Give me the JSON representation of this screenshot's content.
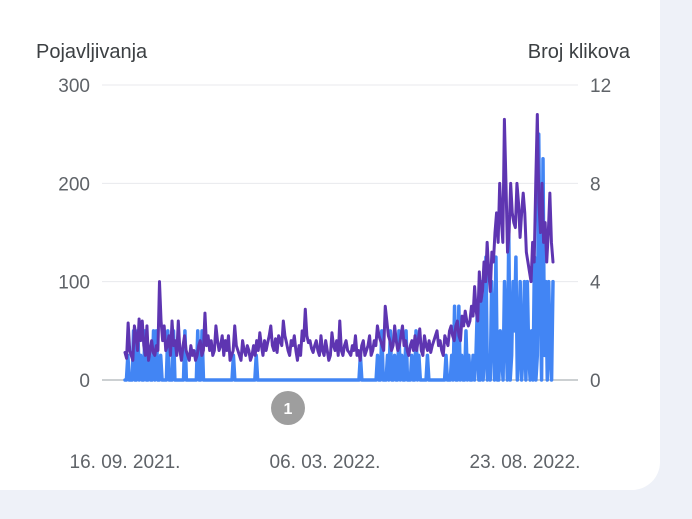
{
  "chart_data": {
    "type": "line",
    "left_axis_title": "Pojavljivanja",
    "right_axis_title": "Broj klikova",
    "left_ticks": [
      "0",
      "100",
      "200",
      "300"
    ],
    "left_ylim": [
      0,
      300
    ],
    "right_ticks": [
      "0",
      "4",
      "8",
      "12"
    ],
    "right_ylim": [
      0,
      12
    ],
    "x_ticks": [
      "16. 09. 2021.",
      "06. 03. 2022.",
      "23. 08. 2022."
    ],
    "annotation": "1",
    "colors": {
      "impressions": "#5e35b1",
      "clicks": "#4285f4"
    },
    "series": [
      {
        "axis": "left",
        "values": [
          28,
          22,
          58,
          30,
          25,
          20,
          55,
          45,
          30,
          62,
          40,
          60,
          35,
          25,
          55,
          20,
          30,
          40,
          28,
          25,
          35,
          30,
          100,
          60,
          40,
          55,
          30,
          35,
          45,
          25,
          60,
          35,
          40,
          25,
          60,
          30,
          20,
          35,
          45,
          30,
          25,
          20,
          35,
          25,
          30,
          20,
          25,
          35,
          40,
          25,
          30,
          68,
          35,
          45,
          30,
          40,
          25,
          30,
          55,
          40,
          30,
          35,
          45,
          25,
          40,
          30,
          45,
          20,
          25,
          30,
          55,
          35,
          30,
          25,
          20,
          40,
          30,
          25,
          35,
          30,
          20,
          25,
          35,
          25,
          40,
          30,
          48,
          35,
          25,
          40,
          30,
          38,
          45,
          55,
          35,
          30,
          42,
          28,
          45,
          40,
          35,
          60,
          45,
          38,
          30,
          25,
          40,
          35,
          45,
          30,
          20,
          35,
          25,
          50,
          40,
          72,
          45,
          38,
          40,
          32,
          28,
          35,
          40,
          30,
          25,
          45,
          30,
          25,
          40,
          30,
          20,
          25,
          48,
          35,
          30,
          40,
          25,
          60,
          30,
          25,
          35,
          40,
          30,
          28,
          25,
          35,
          30,
          45,
          25,
          30,
          20,
          35,
          40,
          25,
          30,
          35,
          45,
          25,
          30,
          40,
          35,
          55,
          45,
          40,
          35,
          30,
          75,
          60,
          45,
          40,
          30,
          35,
          55,
          40,
          30,
          35,
          45,
          55,
          35,
          40,
          30,
          25,
          35,
          40,
          30,
          45,
          30,
          40,
          52,
          30,
          25,
          45,
          35,
          30,
          40,
          28,
          35,
          40,
          45,
          50,
          35,
          40,
          30,
          25,
          45,
          40,
          35,
          50,
          55,
          45,
          40,
          55,
          60,
          45,
          40,
          65,
          55,
          70,
          60,
          55,
          60,
          75,
          65,
          95,
          70,
          60,
          110,
          80,
          90,
          120,
          100,
          140,
          110,
          90,
          130,
          120,
          150,
          170,
          140,
          200,
          165,
          140,
          265,
          200,
          130,
          150,
          200,
          170,
          160,
          155,
          200,
          180,
          145,
          170,
          190,
          170,
          130,
          120,
          110,
          100,
          140,
          120,
          200,
          270,
          180,
          150,
          200,
          140,
          160,
          120,
          150,
          190,
          140,
          120
        ]
      },
      {
        "axis": "right",
        "values": [
          0,
          0,
          1,
          0,
          0,
          0,
          2,
          0,
          0,
          2,
          0,
          1,
          0,
          0,
          2,
          0,
          0,
          1,
          0,
          0,
          2,
          0,
          2,
          0,
          0,
          1,
          0,
          0,
          0,
          0,
          2,
          0,
          0,
          0,
          2,
          0,
          0,
          0,
          0,
          0,
          0,
          0,
          2,
          0,
          0,
          0,
          0,
          0,
          0,
          0,
          0,
          2,
          0,
          0,
          2,
          0,
          0,
          0,
          0,
          0,
          0,
          0,
          0,
          0,
          0,
          0,
          0,
          0,
          0,
          0,
          0,
          0,
          0,
          0,
          0,
          0,
          1,
          0,
          0,
          0,
          0,
          0,
          0,
          0,
          0,
          0,
          0,
          0,
          0,
          0,
          0,
          0,
          1,
          0,
          0,
          0,
          0,
          0,
          0,
          0,
          0,
          0,
          0,
          0,
          0,
          0,
          0,
          0,
          0,
          0,
          0,
          0,
          0,
          0,
          0,
          0,
          0,
          0,
          0,
          0,
          0,
          0,
          0,
          0,
          0,
          0,
          0,
          0,
          0,
          0,
          0,
          0,
          0,
          0,
          0,
          0,
          0,
          0,
          0,
          0,
          0,
          0,
          0,
          0,
          0,
          0,
          0,
          0,
          0,
          0,
          0,
          0,
          0,
          0,
          0,
          0,
          0,
          0,
          0,
          0,
          0,
          0,
          0,
          0,
          0,
          1,
          0,
          0,
          0,
          0,
          0,
          0,
          0,
          0,
          0,
          0,
          0,
          1,
          0,
          0,
          2,
          0,
          0,
          0,
          1,
          0,
          2,
          0,
          0,
          1,
          0,
          0,
          2,
          0,
          1,
          0,
          0,
          2,
          0,
          0,
          0,
          1,
          0,
          0,
          2,
          0,
          1,
          0,
          0,
          0,
          0,
          0,
          1,
          0,
          0,
          0,
          0,
          0,
          0,
          0,
          0,
          0,
          0,
          0,
          0,
          1,
          0,
          0,
          0,
          1,
          0,
          3,
          0,
          0,
          3,
          0,
          1,
          0,
          0,
          2,
          0,
          1,
          0,
          0,
          1,
          0,
          1,
          3,
          0,
          0,
          4,
          0,
          1,
          5,
          0,
          1,
          0,
          4,
          2,
          0,
          5,
          0,
          0,
          2,
          1,
          0,
          4,
          2,
          0,
          6,
          0,
          1,
          4,
          2,
          5,
          0,
          1,
          4,
          0,
          1,
          4,
          0,
          4,
          1,
          0,
          2,
          0,
          5,
          0,
          1,
          10,
          4,
          0,
          9,
          1,
          4,
          0,
          4,
          1,
          0,
          4
        ]
      }
    ]
  }
}
